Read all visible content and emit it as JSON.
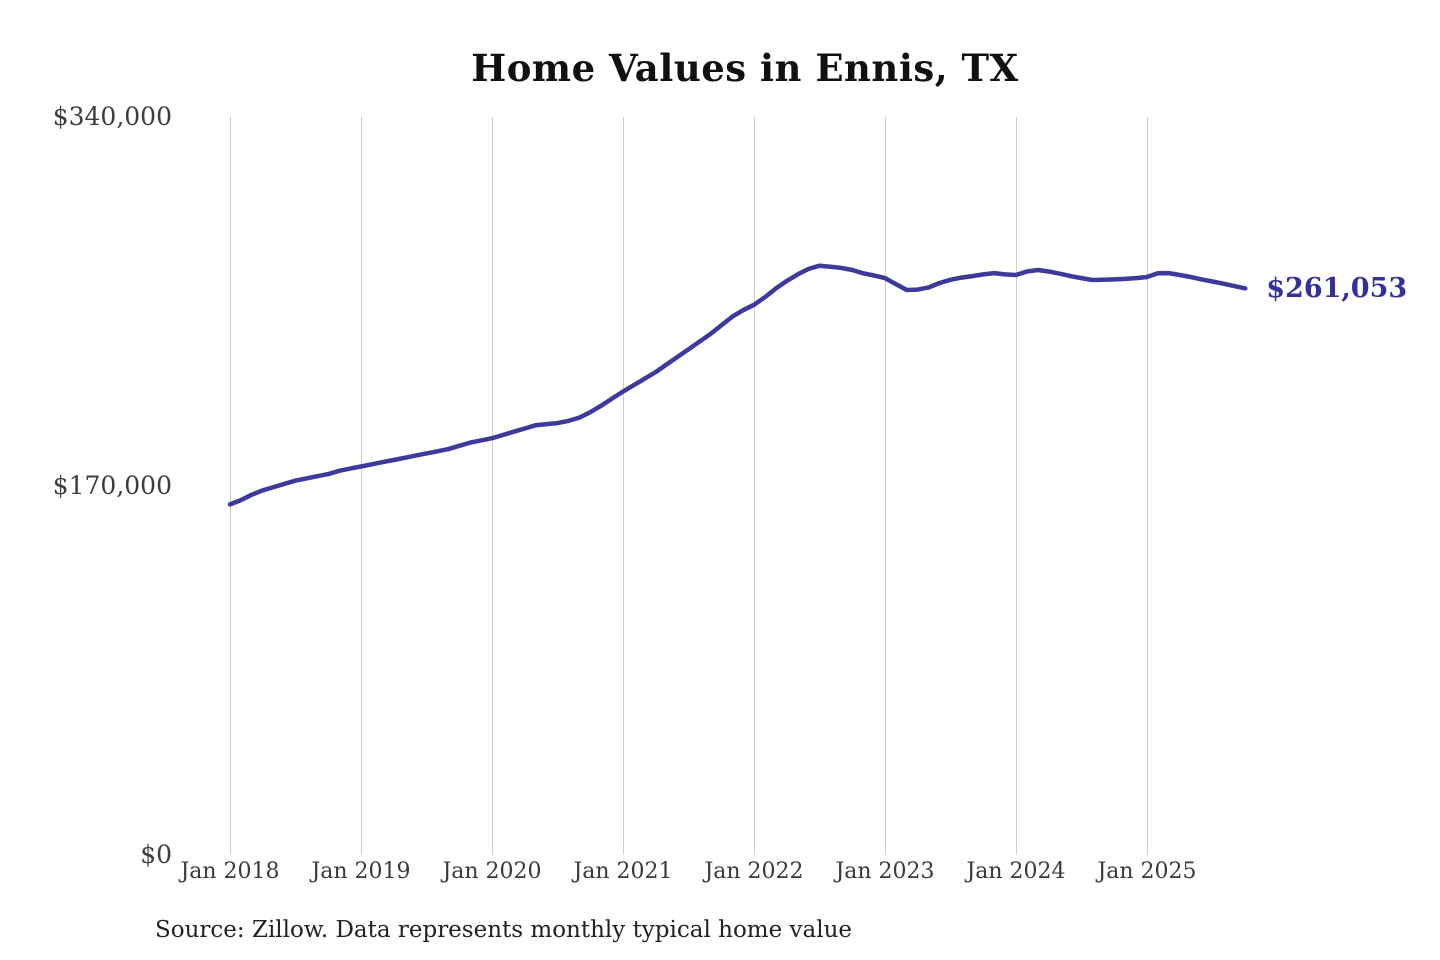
{
  "page": {
    "background_color": "#ffffff"
  },
  "chart_data": {
    "type": "line",
    "title": "Home Values in Ennis, TX",
    "xlabel": "",
    "ylabel": "",
    "ylim": [
      0,
      340000
    ],
    "grid": "vertical-only",
    "gridline_color": "#cccccc",
    "x_tick_labels": [
      "Jan 2018",
      "Jan 2019",
      "Jan 2020",
      "Jan 2021",
      "Jan 2022",
      "Jan 2023",
      "Jan 2024",
      "Jan 2025"
    ],
    "y_ticks": [
      {
        "label": "$340,000",
        "value": 340000
      },
      {
        "label": "$170,000",
        "value": 170000
      },
      {
        "label": "$0",
        "value": 0
      }
    ],
    "series": [
      {
        "name": "Monthly typical home value",
        "color": "#3e3a9c",
        "x_start": "2018-01",
        "x_end": "2025-10",
        "frequency": "monthly",
        "values": [
          161500,
          163500,
          166000,
          168000,
          169500,
          171000,
          172500,
          173500,
          174500,
          175500,
          177000,
          178000,
          179000,
          180000,
          181000,
          182000,
          183000,
          184000,
          185000,
          186000,
          187000,
          188500,
          190000,
          191000,
          192000,
          193500,
          195000,
          196500,
          198000,
          198500,
          199000,
          200000,
          201500,
          204000,
          207000,
          210300,
          213500,
          216500,
          219500,
          222500,
          226000,
          229500,
          233000,
          236500,
          240000,
          244000,
          248000,
          251000,
          253500,
          257000,
          261000,
          264500,
          267500,
          270000,
          271500,
          271000,
          270500,
          269500,
          268000,
          267000,
          265800,
          263000,
          260300,
          260500,
          261500,
          263500,
          265000,
          266000,
          266700,
          267500,
          268100,
          267500,
          267200,
          268800,
          269500,
          268800,
          267800,
          266700,
          265800,
          264900,
          265000,
          265200,
          265400,
          265800,
          266300,
          268000,
          268100,
          267200,
          266300,
          265200,
          264200,
          263200,
          262100,
          261053
        ]
      }
    ],
    "end_label": "$261,053",
    "end_value": 261053,
    "end_label_color": "#35319c",
    "source": "Source: Zillow. Data represents monthly typical home value"
  }
}
